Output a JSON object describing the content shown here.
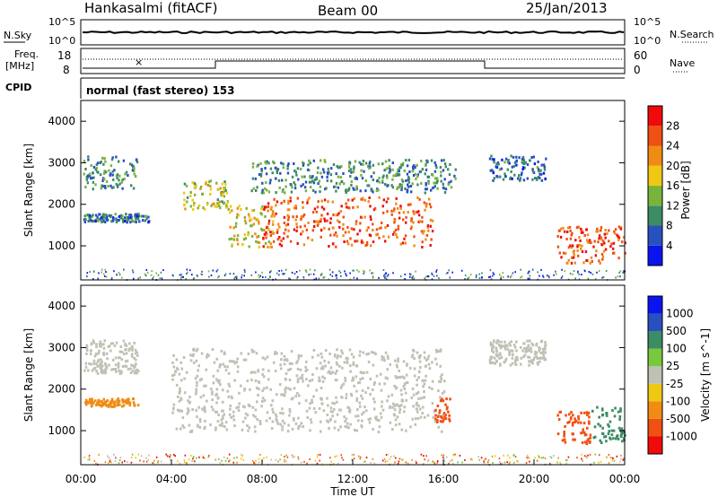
{
  "header": {
    "station": "Hankasalmi (fitACF)",
    "beam": "Beam 00",
    "date": "25/Jan/2013"
  },
  "noise_panel": {
    "left_label": "N.Sky",
    "right_label": "N.Search",
    "left_ticks": [
      "10^5",
      "10^0"
    ],
    "right_ticks": [
      "10^5",
      "10^0"
    ]
  },
  "freq_panel": {
    "left_label_1": "Freq.",
    "left_label_2": "[MHz]",
    "right_label": "Nave",
    "left_ticks": [
      "18",
      "8"
    ],
    "right_ticks": [
      "60",
      "0"
    ]
  },
  "cpid_panel": {
    "label": "CPID",
    "text": "normal (fast stereo) 153"
  },
  "colors": {
    "scale": [
      "#0a14f0",
      "#2850c0",
      "#3c8c64",
      "#78b43c",
      "#f0c814",
      "#f08c14",
      "#f05014",
      "#f00a0a"
    ],
    "velocity": [
      "#f00a0a",
      "#f05014",
      "#f08c14",
      "#f0c814",
      "#c0c0b4",
      "#78c83c",
      "#3c8c64",
      "#2850c0",
      "#0a14f0"
    ],
    "ground_scatter": "#c0c0b4"
  },
  "chart_data": [
    {
      "type": "heatmap",
      "name": "power",
      "xlabel": "",
      "ylabel": "Slant Range [km]",
      "xlim": [
        0,
        24
      ],
      "ylim": [
        180,
        4500
      ],
      "yticks": [
        "1000",
        "2000",
        "3000",
        "4000"
      ],
      "colorbar": {
        "label": "Power [dB]",
        "ticks": [
          "4",
          "8",
          "12",
          "16",
          "20",
          "24",
          "28"
        ],
        "range": [
          0,
          32
        ]
      },
      "echo_regions": [
        {
          "t": [
            0.1,
            2.5
          ],
          "r": [
            2400,
            3200
          ],
          "level": 10
        },
        {
          "t": [
            0.1,
            3.0
          ],
          "r": [
            1600,
            1800
          ],
          "level": 8
        },
        {
          "t": [
            4.5,
            6.5
          ],
          "r": [
            1900,
            2600
          ],
          "level": 16
        },
        {
          "t": [
            6.5,
            8.5
          ],
          "r": [
            1000,
            2000
          ],
          "level": 18
        },
        {
          "t": [
            8.0,
            15.5
          ],
          "r": [
            1000,
            2200
          ],
          "level": 26
        },
        {
          "t": [
            7.5,
            16.5
          ],
          "r": [
            2300,
            3100
          ],
          "level": 10
        },
        {
          "t": [
            21.0,
            24.0
          ],
          "r": [
            600,
            1500
          ],
          "level": 26
        },
        {
          "t": [
            18.0,
            20.5
          ],
          "r": [
            2600,
            3200
          ],
          "level": 8
        }
      ]
    },
    {
      "type": "heatmap",
      "name": "velocity",
      "xlabel": "Time UT",
      "ylabel": "Slant Range [km]",
      "xlim": [
        0,
        24
      ],
      "ylim": [
        180,
        4500
      ],
      "xticks": [
        "00:00",
        "04:00",
        "08:00",
        "12:00",
        "16:00",
        "20:00",
        "00:00"
      ],
      "yticks": [
        "1000",
        "2000",
        "3000",
        "4000"
      ],
      "colorbar": {
        "label": "Velocity [m s^-1]",
        "ticks": [
          "1000",
          "500",
          "100",
          "25",
          "-25",
          "-100",
          "-500",
          "-1000"
        ]
      },
      "echo_regions": [
        {
          "t": [
            0.1,
            2.5
          ],
          "r": [
            2400,
            3200
          ],
          "class": "ground"
        },
        {
          "t": [
            0.1,
            2.5
          ],
          "r": [
            1600,
            1800
          ],
          "class": "-100"
        },
        {
          "t": [
            4.0,
            16.0
          ],
          "r": [
            1000,
            3000
          ],
          "class": "ground"
        },
        {
          "t": [
            15.5,
            16.3
          ],
          "r": [
            1200,
            1800
          ],
          "class": "-500"
        },
        {
          "t": [
            21.0,
            22.5
          ],
          "r": [
            700,
            1500
          ],
          "class": "-500"
        },
        {
          "t": [
            22.5,
            24.0
          ],
          "r": [
            700,
            1600
          ],
          "class": "500"
        },
        {
          "t": [
            18.0,
            20.5
          ],
          "r": [
            2600,
            3200
          ],
          "class": "ground"
        }
      ]
    }
  ]
}
